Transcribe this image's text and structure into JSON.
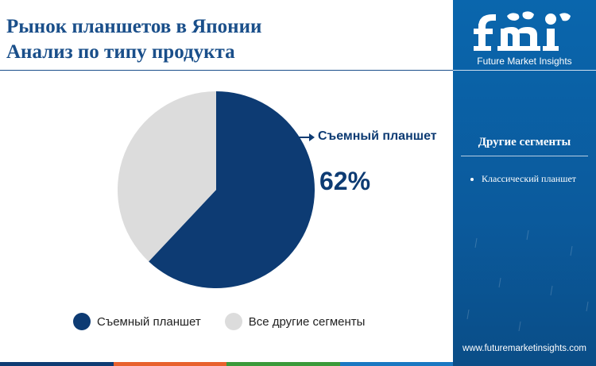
{
  "header": {
    "title_line1": "Рынок планшетов в Японии",
    "title_line2": "Анализ по типу продукта"
  },
  "callout": {
    "label": "Съемный планшет",
    "value": "62%"
  },
  "chart_data": {
    "type": "pie",
    "title": "",
    "slices": [
      {
        "name": "Съемный планшет",
        "value": 62,
        "color": "#0d3b73"
      },
      {
        "name": "Все другие сегменты",
        "value": 38,
        "color": "#dcdcdc"
      }
    ],
    "legend_placement": "bottom"
  },
  "legend": {
    "items": [
      {
        "label": "Съемный планшет",
        "color": "#0d3b73"
      },
      {
        "label": "Все другие сегменты",
        "color": "#dcdcdc"
      }
    ]
  },
  "sidebar": {
    "logo_text": "Future Market Insights",
    "heading": "Другие сегменты",
    "items": [
      "Классический планшет"
    ],
    "website": "www.futuremarketinsights.com"
  },
  "colors": {
    "primary": "#0d3b73",
    "sidebar": "#0a66ad",
    "strip": [
      "#0d3b73",
      "#e8612c",
      "#3a9a3a",
      "#1a78c2"
    ]
  },
  "icons": {
    "logo": "fmi-logo-icon",
    "arrow": "arrow-right-icon"
  }
}
